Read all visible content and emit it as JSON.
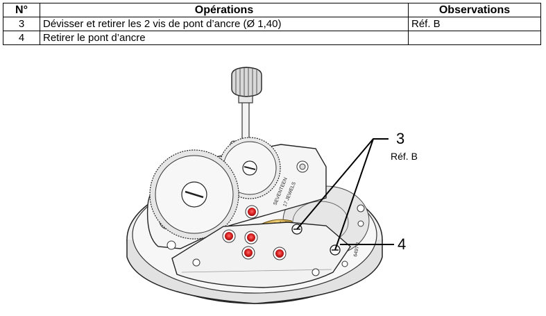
{
  "table": {
    "headers": {
      "num": "N°",
      "operations": "Opérations",
      "observations": "Observations"
    },
    "rows": [
      {
        "num": "3",
        "operation": "Dévisser et retirer les 2 vis de pont d’ancre (Ø 1,40)",
        "observation": "Réf. B"
      },
      {
        "num": "4",
        "operation": "Retirer le pont d’ancre",
        "observation": ""
      }
    ]
  },
  "figure": {
    "callout_3": "3",
    "callout_3_ref": "Réf. B",
    "callout_4": "4",
    "engraving_line1": "SEVENTEEN",
    "engraving_line2": "17 JEWELS",
    "part_number": "6497-1"
  }
}
